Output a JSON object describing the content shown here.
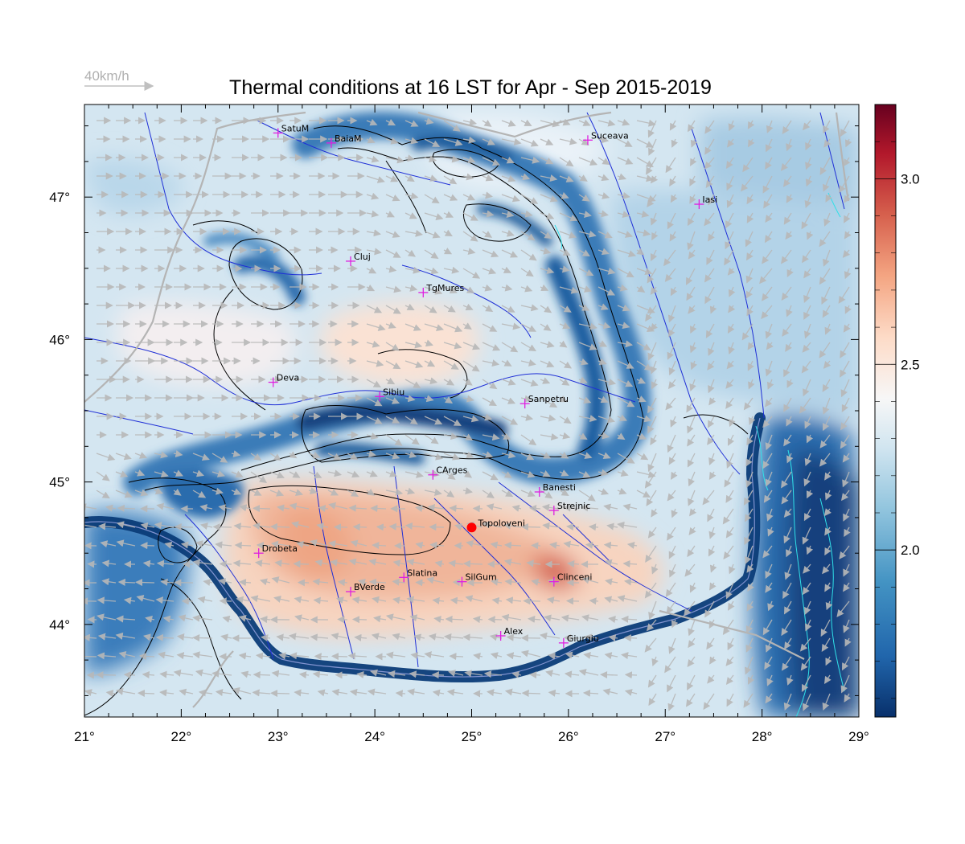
{
  "title": "Thermal conditions at 16 LST for Apr - Sep  2015-2019",
  "wind_scale": {
    "label": "40km/h"
  },
  "map": {
    "lon_range": [
      21,
      29
    ],
    "lat_range": [
      43.35,
      47.65
    ],
    "lon_ticks": [
      "21°",
      "22°",
      "23°",
      "24°",
      "25°",
      "26°",
      "27°",
      "28°",
      "29°"
    ],
    "lat_ticks": [
      "44°",
      "45°",
      "46°",
      "47°"
    ]
  },
  "colorbar": {
    "range": [
      1.55,
      3.2
    ],
    "ticks": [
      "2.0",
      "2.5",
      "3.0"
    ],
    "colors": [
      "#08306b",
      "#2166ac",
      "#4393c3",
      "#92c5de",
      "#d1e5f0",
      "#f7f7f7",
      "#fddbc7",
      "#f4a582",
      "#d6604d",
      "#b2182b",
      "#67001f"
    ]
  },
  "locations": [
    {
      "name": "SatuM",
      "lon": 23.0,
      "lat": 47.45
    },
    {
      "name": "BaiaM",
      "lon": 23.55,
      "lat": 47.38
    },
    {
      "name": "Suceava",
      "lon": 26.2,
      "lat": 47.4
    },
    {
      "name": "Iasi",
      "lon": 27.35,
      "lat": 46.95
    },
    {
      "name": "Cluj",
      "lon": 23.75,
      "lat": 46.55
    },
    {
      "name": "TgMures",
      "lon": 24.5,
      "lat": 46.33
    },
    {
      "name": "Deva",
      "lon": 22.95,
      "lat": 45.7
    },
    {
      "name": "Sibiu",
      "lon": 24.05,
      "lat": 45.6
    },
    {
      "name": "Sanpetru",
      "lon": 25.55,
      "lat": 45.55
    },
    {
      "name": "CArges",
      "lon": 24.6,
      "lat": 45.05
    },
    {
      "name": "Banesti",
      "lon": 25.7,
      "lat": 44.93
    },
    {
      "name": "Strejnic",
      "lon": 25.85,
      "lat": 44.8
    },
    {
      "name": "Drobeta",
      "lon": 22.8,
      "lat": 44.5
    },
    {
      "name": "Slatina",
      "lon": 24.3,
      "lat": 44.33
    },
    {
      "name": "BVerde",
      "lon": 23.75,
      "lat": 44.23
    },
    {
      "name": "SilGum",
      "lon": 24.9,
      "lat": 44.3
    },
    {
      "name": "Clinceni",
      "lon": 25.85,
      "lat": 44.3
    },
    {
      "name": "Alex",
      "lon": 25.3,
      "lat": 43.92
    },
    {
      "name": "Giurgiu",
      "lon": 25.95,
      "lat": 43.87
    }
  ],
  "highlight_location": {
    "name": "Topoloveni",
    "lon": 25.0,
    "lat": 44.68,
    "color": "#ff0000"
  }
}
